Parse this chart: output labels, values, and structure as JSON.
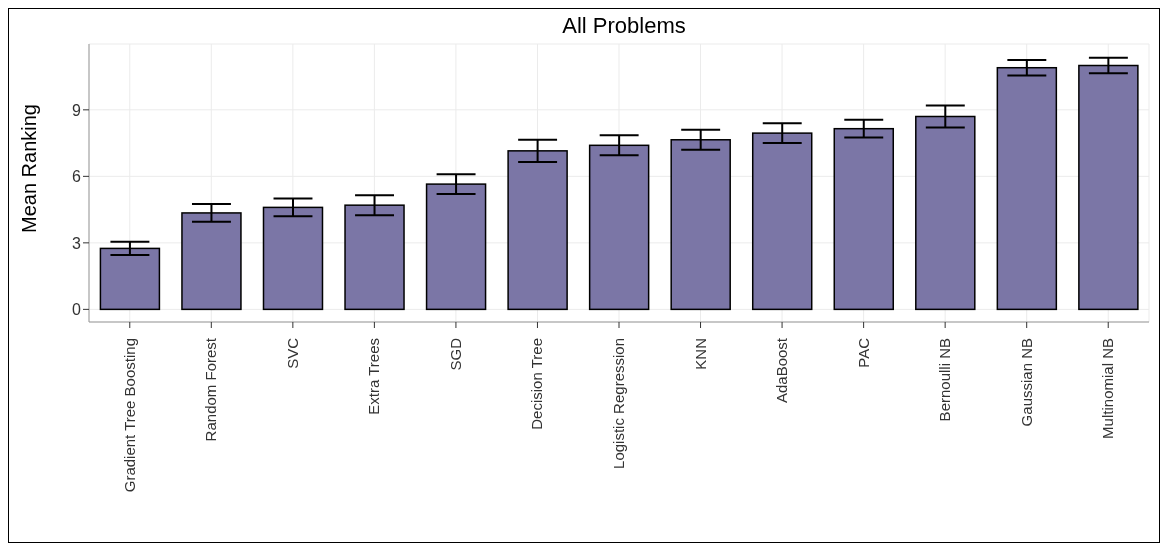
{
  "chart_data": {
    "type": "bar",
    "title": "All Problems",
    "ylabel": "Mean Ranking",
    "categories": [
      "Gradient Tree Boosting",
      "Random Forest",
      "SVC",
      "Extra Trees",
      "SGD",
      "Decision Tree",
      "Logistic Regression",
      "KNN",
      "AdaBoost",
      "PAC",
      "Bernoulli NB",
      "Gaussian NB",
      "Multinomial NB"
    ],
    "values": [
      2.75,
      4.35,
      4.6,
      4.7,
      5.65,
      7.15,
      7.4,
      7.65,
      7.95,
      8.15,
      8.7,
      10.9,
      11.0
    ],
    "errors": [
      0.3,
      0.4,
      0.4,
      0.45,
      0.45,
      0.5,
      0.45,
      0.45,
      0.45,
      0.4,
      0.5,
      0.35,
      0.35
    ],
    "color": "#7b76a6",
    "ylim": [
      -0.57,
      11.97
    ],
    "yticks": [
      0,
      3,
      6,
      9
    ],
    "grid": true
  }
}
